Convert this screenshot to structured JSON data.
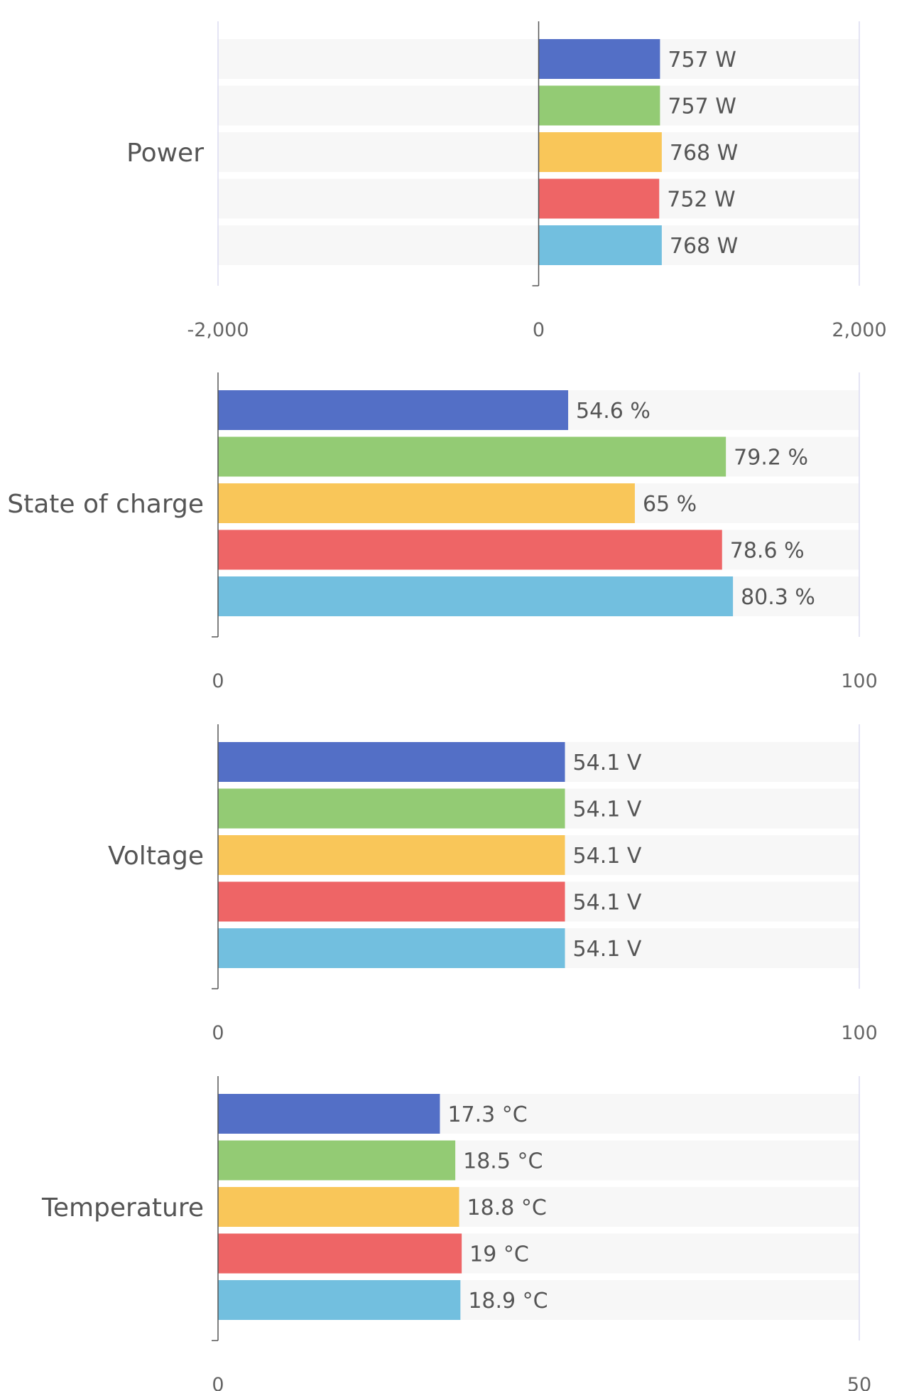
{
  "colors": {
    "series": [
      "#536fc6",
      "#93cb74",
      "#f9c659",
      "#ee6566",
      "#72bfdf"
    ],
    "row_background": "#f7f7f7",
    "gridline": "#dcdcf0",
    "axis": "#555555"
  },
  "chart_data": [
    {
      "type": "bar",
      "orientation": "horizontal",
      "category": "Power",
      "values": [
        757,
        757,
        768,
        752,
        768
      ],
      "labels": [
        "757 W",
        "757 W",
        "768 W",
        "752 W",
        "768 W"
      ],
      "unit": "W",
      "xlim": [
        -2000,
        2000
      ],
      "ticks": [
        -2000,
        0,
        2000
      ],
      "tick_labels": [
        "-2,000",
        "0",
        "2,000"
      ]
    },
    {
      "type": "bar",
      "orientation": "horizontal",
      "category": "State of charge",
      "values": [
        54.6,
        79.2,
        65,
        78.6,
        80.3
      ],
      "labels": [
        "54.6 %",
        "79.2 %",
        "65 %",
        "78.6 %",
        "80.3 %"
      ],
      "unit": "%",
      "xlim": [
        0,
        100
      ],
      "ticks": [
        0,
        100
      ],
      "tick_labels": [
        "0",
        "100"
      ]
    },
    {
      "type": "bar",
      "orientation": "horizontal",
      "category": "Voltage",
      "values": [
        54.1,
        54.1,
        54.1,
        54.1,
        54.1
      ],
      "labels": [
        "54.1 V",
        "54.1 V",
        "54.1 V",
        "54.1 V",
        "54.1 V"
      ],
      "unit": "V",
      "xlim": [
        0,
        100
      ],
      "ticks": [
        0,
        100
      ],
      "tick_labels": [
        "0",
        "100"
      ]
    },
    {
      "type": "bar",
      "orientation": "horizontal",
      "category": "Temperature",
      "values": [
        17.3,
        18.5,
        18.8,
        19,
        18.9
      ],
      "labels": [
        "17.3 °C",
        "18.5 °C",
        "18.8 °C",
        "19 °C",
        "18.9 °C"
      ],
      "unit": "°C",
      "xlim": [
        0,
        50
      ],
      "ticks": [
        0,
        50
      ],
      "tick_labels": [
        "0",
        "50"
      ]
    }
  ]
}
